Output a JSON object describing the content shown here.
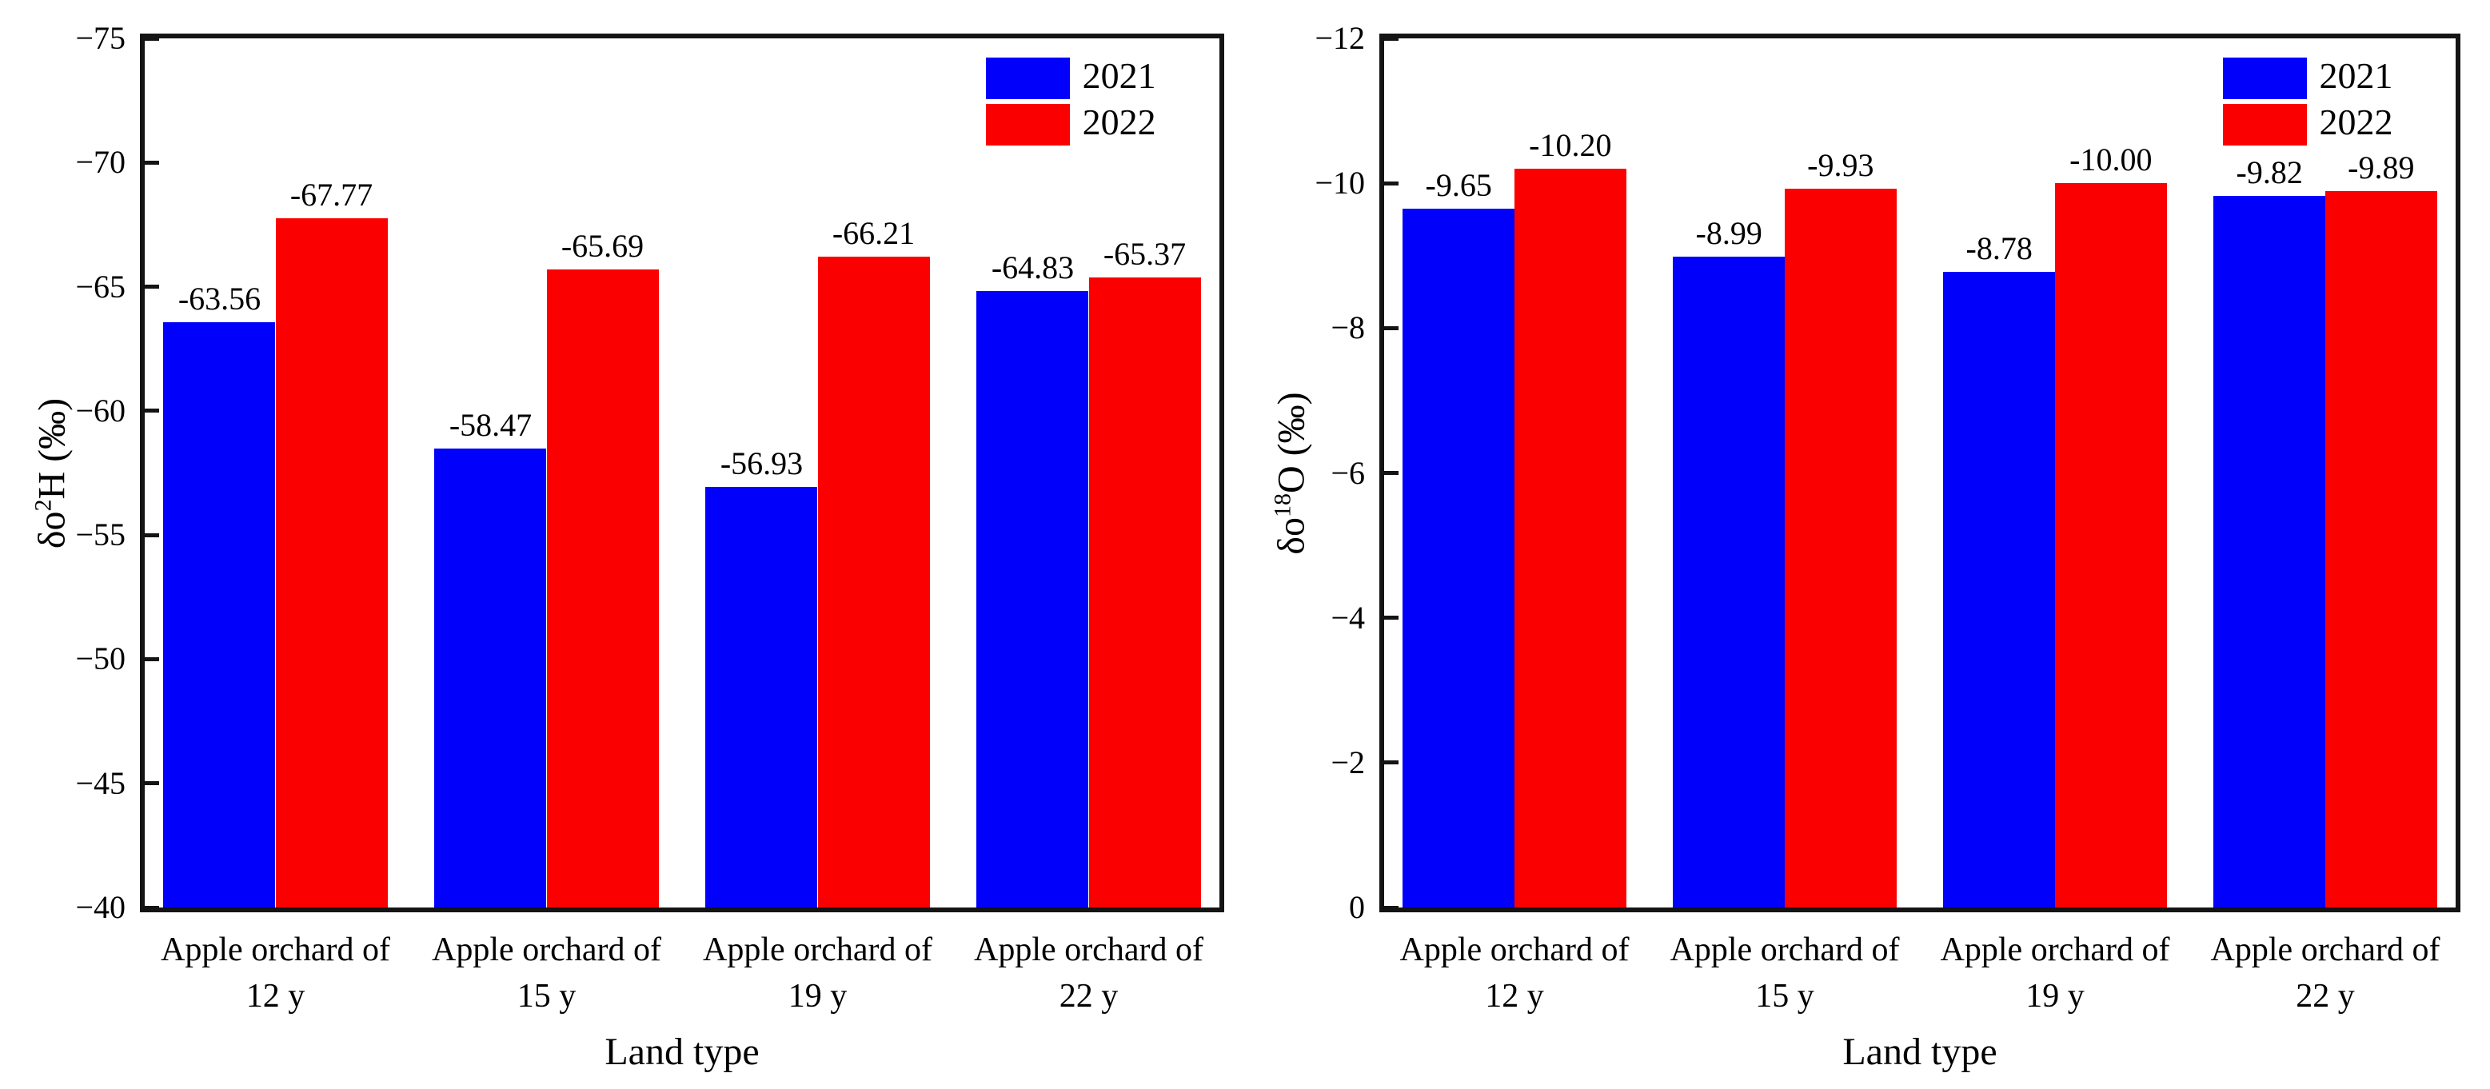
{
  "figure": {
    "background": "#ffffff",
    "palette": {
      "series_2021": "#0000fb",
      "series_2022": "#fb0000",
      "axis": "#141414",
      "text": "#000000"
    }
  },
  "chart_data": [
    {
      "type": "bar",
      "title": "",
      "xlabel": "Land type",
      "ylabel_parts": {
        "pre": "δo",
        "sup": "2",
        "post": "H (‰)"
      },
      "ylabel_text": "δo2H (‰)",
      "categories_line1": "Apple orchard of",
      "categories_line2": [
        "12 y",
        "15 y",
        "19 y",
        "22 y"
      ],
      "categories": [
        "Apple orchard of 12 y",
        "Apple orchard of 15 y",
        "Apple orchard of 19 y",
        "Apple orchard of 22 y"
      ],
      "series": [
        {
          "name": "2021",
          "color_key": "series_2021",
          "values": [
            -63.56,
            -58.47,
            -56.93,
            -64.83
          ],
          "labels": [
            "-63.56",
            "-58.47",
            "-56.93",
            "-64.83"
          ]
        },
        {
          "name": "2022",
          "color_key": "series_2022",
          "values": [
            -67.77,
            -65.69,
            -66.21,
            -65.37
          ],
          "labels": [
            "-67.77",
            "-65.69",
            "-66.21",
            "-65.37"
          ]
        }
      ],
      "y_axis": {
        "bottom_value": -40,
        "top_value": -75,
        "tick_values": [
          -40,
          -45,
          -50,
          -55,
          -60,
          -65,
          -70,
          -75
        ],
        "tick_labels": [
          "−40",
          "−45",
          "−50",
          "−55",
          "−60",
          "−65",
          "−70",
          "−75"
        ]
      },
      "legend": {
        "position": "top-right",
        "entries": [
          "2021",
          "2022"
        ]
      },
      "grid": false
    },
    {
      "type": "bar",
      "title": "",
      "xlabel": "Land type",
      "ylabel_parts": {
        "pre": "δo",
        "sup": "18",
        "post": "O (‰)"
      },
      "ylabel_text": "δo18O (‰)",
      "categories_line1": "Apple orchard of",
      "categories_line2": [
        "12 y",
        "15 y",
        "19 y",
        "22 y"
      ],
      "categories": [
        "Apple orchard of 12 y",
        "Apple orchard of 15 y",
        "Apple orchard of 19 y",
        "Apple orchard of 22 y"
      ],
      "series": [
        {
          "name": "2021",
          "color_key": "series_2021",
          "values": [
            -9.65,
            -8.99,
            -8.78,
            -9.82
          ],
          "labels": [
            "-9.65",
            "-8.99",
            "-8.78",
            "-9.82"
          ]
        },
        {
          "name": "2022",
          "color_key": "series_2022",
          "values": [
            -10.2,
            -9.93,
            -10.0,
            -9.89
          ],
          "labels": [
            "-10.20",
            "-9.93",
            "-10.00",
            "-9.89"
          ]
        }
      ],
      "y_axis": {
        "bottom_value": 0,
        "top_value": -12,
        "tick_values": [
          0,
          -2,
          -4,
          -6,
          -8,
          -10,
          -12
        ],
        "tick_labels": [
          "0",
          "−2",
          "−4",
          "−6",
          "−8",
          "−10",
          "−12"
        ]
      },
      "legend": {
        "position": "top-right",
        "entries": [
          "2021",
          "2022"
        ]
      },
      "grid": false
    }
  ]
}
